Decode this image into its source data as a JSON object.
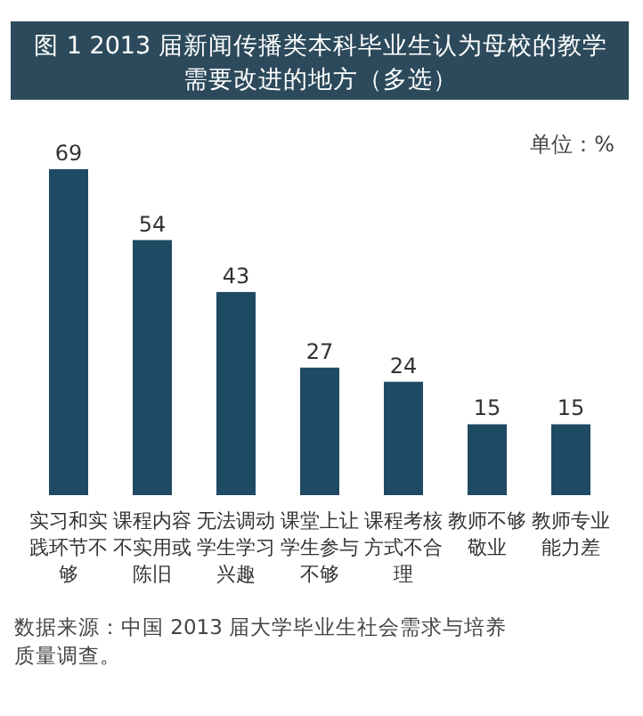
{
  "chart_data": {
    "type": "bar",
    "title": "图 1  2013 届新闻传播类本科毕业生认为母校的教学需要改进的地方（多选）",
    "categories": [
      "实习和实践环节不够",
      "课程内容不实用或陈旧",
      "无法调动学生学习兴趣",
      "课堂上让学生参与不够",
      "课程考核方式不合理",
      "教师不够敬业",
      "教师专业能力差"
    ],
    "values": [
      69,
      54,
      43,
      27,
      24,
      15,
      15
    ],
    "color": "#1f4a64",
    "data_labels": true,
    "annotations": [
      "单位：%",
      "数据来源：中国 2013 届大学毕业生社会需求与培养质量调查。"
    ]
  }
}
